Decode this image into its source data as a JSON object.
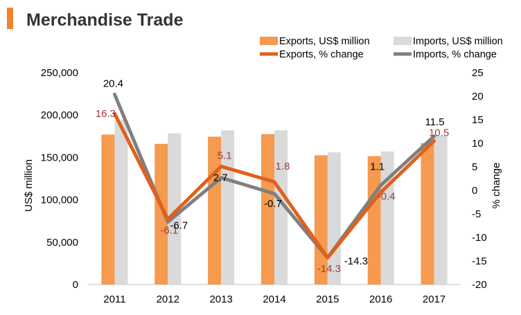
{
  "colors": {
    "accent_bar": "#F5822A",
    "exports_bar": "#F59A4E",
    "imports_bar": "#DADADA",
    "exports_line": "#E0601C",
    "imports_line": "#7F7F7F",
    "exports_label": "#A23A3A",
    "imports_label": "#000000"
  },
  "chart_data": {
    "type": "bar",
    "title": "Merchandise Trade",
    "ylabel": "US$ million",
    "y2label": "% change",
    "categories": [
      "2011",
      "2012",
      "2013",
      "2014",
      "2015",
      "2016",
      "2017"
    ],
    "ylim": [
      0,
      250000
    ],
    "y2lim": [
      -20,
      25
    ],
    "yticks": [
      "0",
      "50,000",
      "100,000",
      "150,000",
      "200,000",
      "250,000"
    ],
    "y2ticks": [
      "-20",
      "-15",
      "-10",
      "-5",
      "0",
      "5",
      "10",
      "15",
      "20",
      "25"
    ],
    "legend_position": "top-right",
    "grid": false,
    "series": [
      {
        "name": "Exports, US$ million",
        "type": "bar",
        "axis": "left",
        "values": [
          177000,
          166000,
          174500,
          177500,
          152500,
          151500,
          167000
        ]
      },
      {
        "name": "Imports, US$ million",
        "type": "bar",
        "axis": "left",
        "values": [
          194000,
          178500,
          182000,
          182000,
          156000,
          157000,
          175500
        ]
      },
      {
        "name": "Exports, % change",
        "type": "line",
        "axis": "right",
        "values": [
          16.3,
          -6.1,
          5.1,
          1.8,
          -14.3,
          -0.4,
          10.5
        ],
        "labels": [
          "16.3",
          "-6.1",
          "5.1",
          "1.8",
          "-14.3",
          "-0.4",
          "10.5"
        ]
      },
      {
        "name": "Imports, % change",
        "type": "line",
        "axis": "right",
        "values": [
          20.4,
          -6.7,
          2.7,
          -0.7,
          -14.3,
          1.1,
          11.5
        ],
        "labels": [
          "20.4",
          "-6.7",
          "2.7",
          "-0.7",
          "-14.3",
          "1.1",
          "11.5"
        ]
      }
    ]
  }
}
